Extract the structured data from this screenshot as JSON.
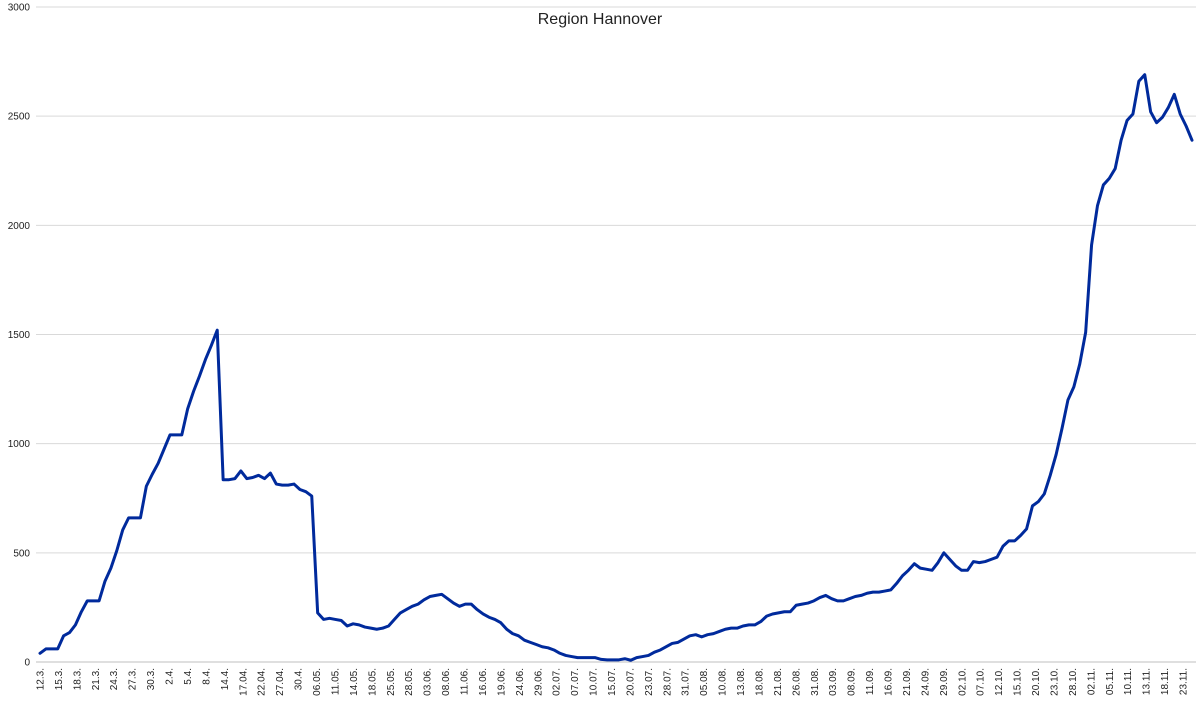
{
  "chart_data": {
    "type": "line",
    "title": "Region Hannover",
    "xlabel": "",
    "ylabel": "",
    "ylim": [
      0,
      3000
    ],
    "yticks": [
      0,
      500,
      1000,
      1500,
      2000,
      2500,
      3000
    ],
    "grid": true,
    "legend": "none",
    "color": "#002a9c",
    "xtick_labels": [
      "12.3.",
      "15.3.",
      "18.3.",
      "21.3.",
      "24.3.",
      "27.3.",
      "30.3.",
      "2.4.",
      "5.4.",
      "8.4.",
      "14.4.",
      "17.04.",
      "22.04.",
      "27.04.",
      "30.4.",
      "06.05.",
      "11.05.",
      "14.05.",
      "18.05.",
      "25.05.",
      "28.05.",
      "03.06.",
      "08.06.",
      "11.06.",
      "16.06.",
      "19.06.",
      "24.06.",
      "29.06.",
      "02.07.",
      "07.07.",
      "10.07.",
      "15.07.",
      "20.07.",
      "23.07.",
      "28.07.",
      "31.07.",
      "05.08.",
      "10.08.",
      "13.08.",
      "18.08.",
      "21.08.",
      "26.08.",
      "31.08.",
      "03.09.",
      "08.09.",
      "11.09.",
      "16.09.",
      "21.09.",
      "24.09.",
      "29.09.",
      "02.10.",
      "07.10.",
      "12.10.",
      "15.10.",
      "20.10.",
      "23.10.",
      "28.10.",
      "02.11.",
      "05.11.",
      "10.11.",
      "13.11.",
      "18.11.",
      "23.11."
    ],
    "values": [
      40,
      60,
      60,
      60,
      120,
      135,
      170,
      230,
      280,
      280,
      280,
      370,
      430,
      510,
      605,
      660,
      660,
      660,
      805,
      860,
      910,
      975,
      1040,
      1040,
      1040,
      1160,
      1240,
      1310,
      1385,
      1450,
      1520,
      835,
      835,
      840,
      875,
      840,
      845,
      855,
      840,
      865,
      815,
      810,
      810,
      815,
      790,
      780,
      760,
      225,
      195,
      200,
      195,
      190,
      165,
      175,
      170,
      160,
      155,
      150,
      155,
      165,
      195,
      225,
      240,
      255,
      265,
      285,
      300,
      305,
      310,
      290,
      270,
      255,
      265,
      265,
      240,
      220,
      205,
      195,
      180,
      150,
      130,
      120,
      100,
      90,
      80,
      70,
      65,
      55,
      40,
      30,
      25,
      20,
      20,
      20,
      20,
      12,
      10,
      10,
      10,
      15,
      8,
      20,
      25,
      30,
      45,
      55,
      70,
      85,
      90,
      105,
      120,
      125,
      115,
      125,
      130,
      140,
      150,
      155,
      155,
      165,
      170,
      170,
      185,
      210,
      220,
      225,
      230,
      230,
      260,
      265,
      270,
      280,
      295,
      305,
      290,
      280,
      280,
      290,
      300,
      305,
      315,
      320,
      320,
      325,
      330,
      360,
      395,
      420,
      450,
      430,
      425,
      420,
      455,
      500,
      470,
      440,
      420,
      420,
      460,
      455,
      460,
      470,
      480,
      530,
      555,
      555,
      580,
      610,
      715,
      735,
      770,
      855,
      950,
      1070,
      1200,
      1260,
      1365,
      1510,
      1910,
      2090,
      2185,
      2215,
      2260,
      2390,
      2480,
      2510,
      2660,
      2690,
      2520,
      2470,
      2495,
      2540,
      2600,
      2510,
      2455,
      2390
    ]
  }
}
